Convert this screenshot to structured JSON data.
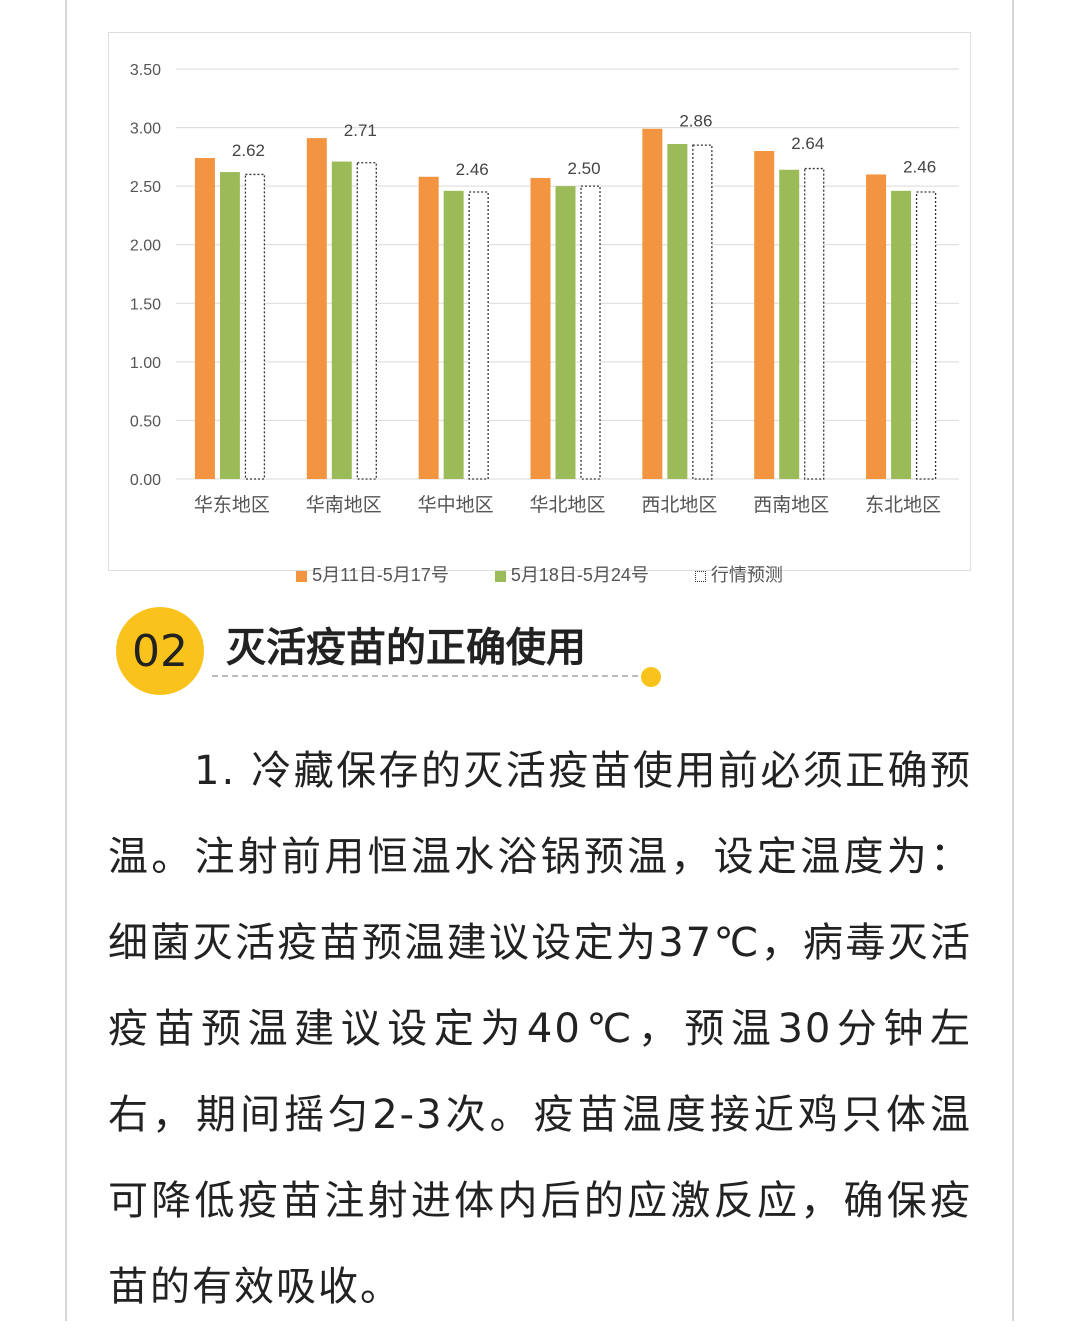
{
  "chart_data": {
    "type": "bar",
    "categories": [
      "华东地区",
      "华南地区",
      "华中地区",
      "华北地区",
      "西北地区",
      "西南地区",
      "东北地区"
    ],
    "series": [
      {
        "name": "5月11日-5月17号",
        "color": "#f39440",
        "style": "solid",
        "values": [
          2.74,
          2.91,
          2.58,
          2.57,
          2.99,
          2.8,
          2.6
        ]
      },
      {
        "name": "5月18日-5月24号",
        "color": "#9bbb59",
        "style": "solid",
        "values": [
          2.62,
          2.71,
          2.46,
          2.5,
          2.86,
          2.64,
          2.46
        ]
      },
      {
        "name": "行情预测",
        "color": "#333333",
        "style": "dotted-outline",
        "values": [
          2.6,
          2.7,
          2.45,
          2.5,
          2.85,
          2.65,
          2.45
        ]
      }
    ],
    "data_labels": [
      "2.62",
      "2.71",
      "2.46",
      "2.50",
      "2.86",
      "2.64",
      "2.46"
    ],
    "yticks": [
      "0.00",
      "0.50",
      "1.00",
      "1.50",
      "2.00",
      "2.50",
      "3.00",
      "3.50"
    ],
    "ylim": [
      0,
      3.5
    ],
    "grid": true,
    "legend_position": "bottom"
  },
  "section": {
    "number": "02",
    "title": "灭活疫苗的正确使用",
    "accent": "#f9c31b"
  },
  "paragraph": "1. 冷藏保存的灭活疫苗使用前必须正确预温。注射前用恒温水浴锅预温，设定温度为：细菌灭活疫苗预温建议设定为37℃，病毒灭活疫苗预温建议设定为40℃，预温30分钟左右，期间摇匀2-3次。疫苗温度接近鸡只体温可降低疫苗注射进体内后的应激反应，确保疫苗的有效吸收。"
}
